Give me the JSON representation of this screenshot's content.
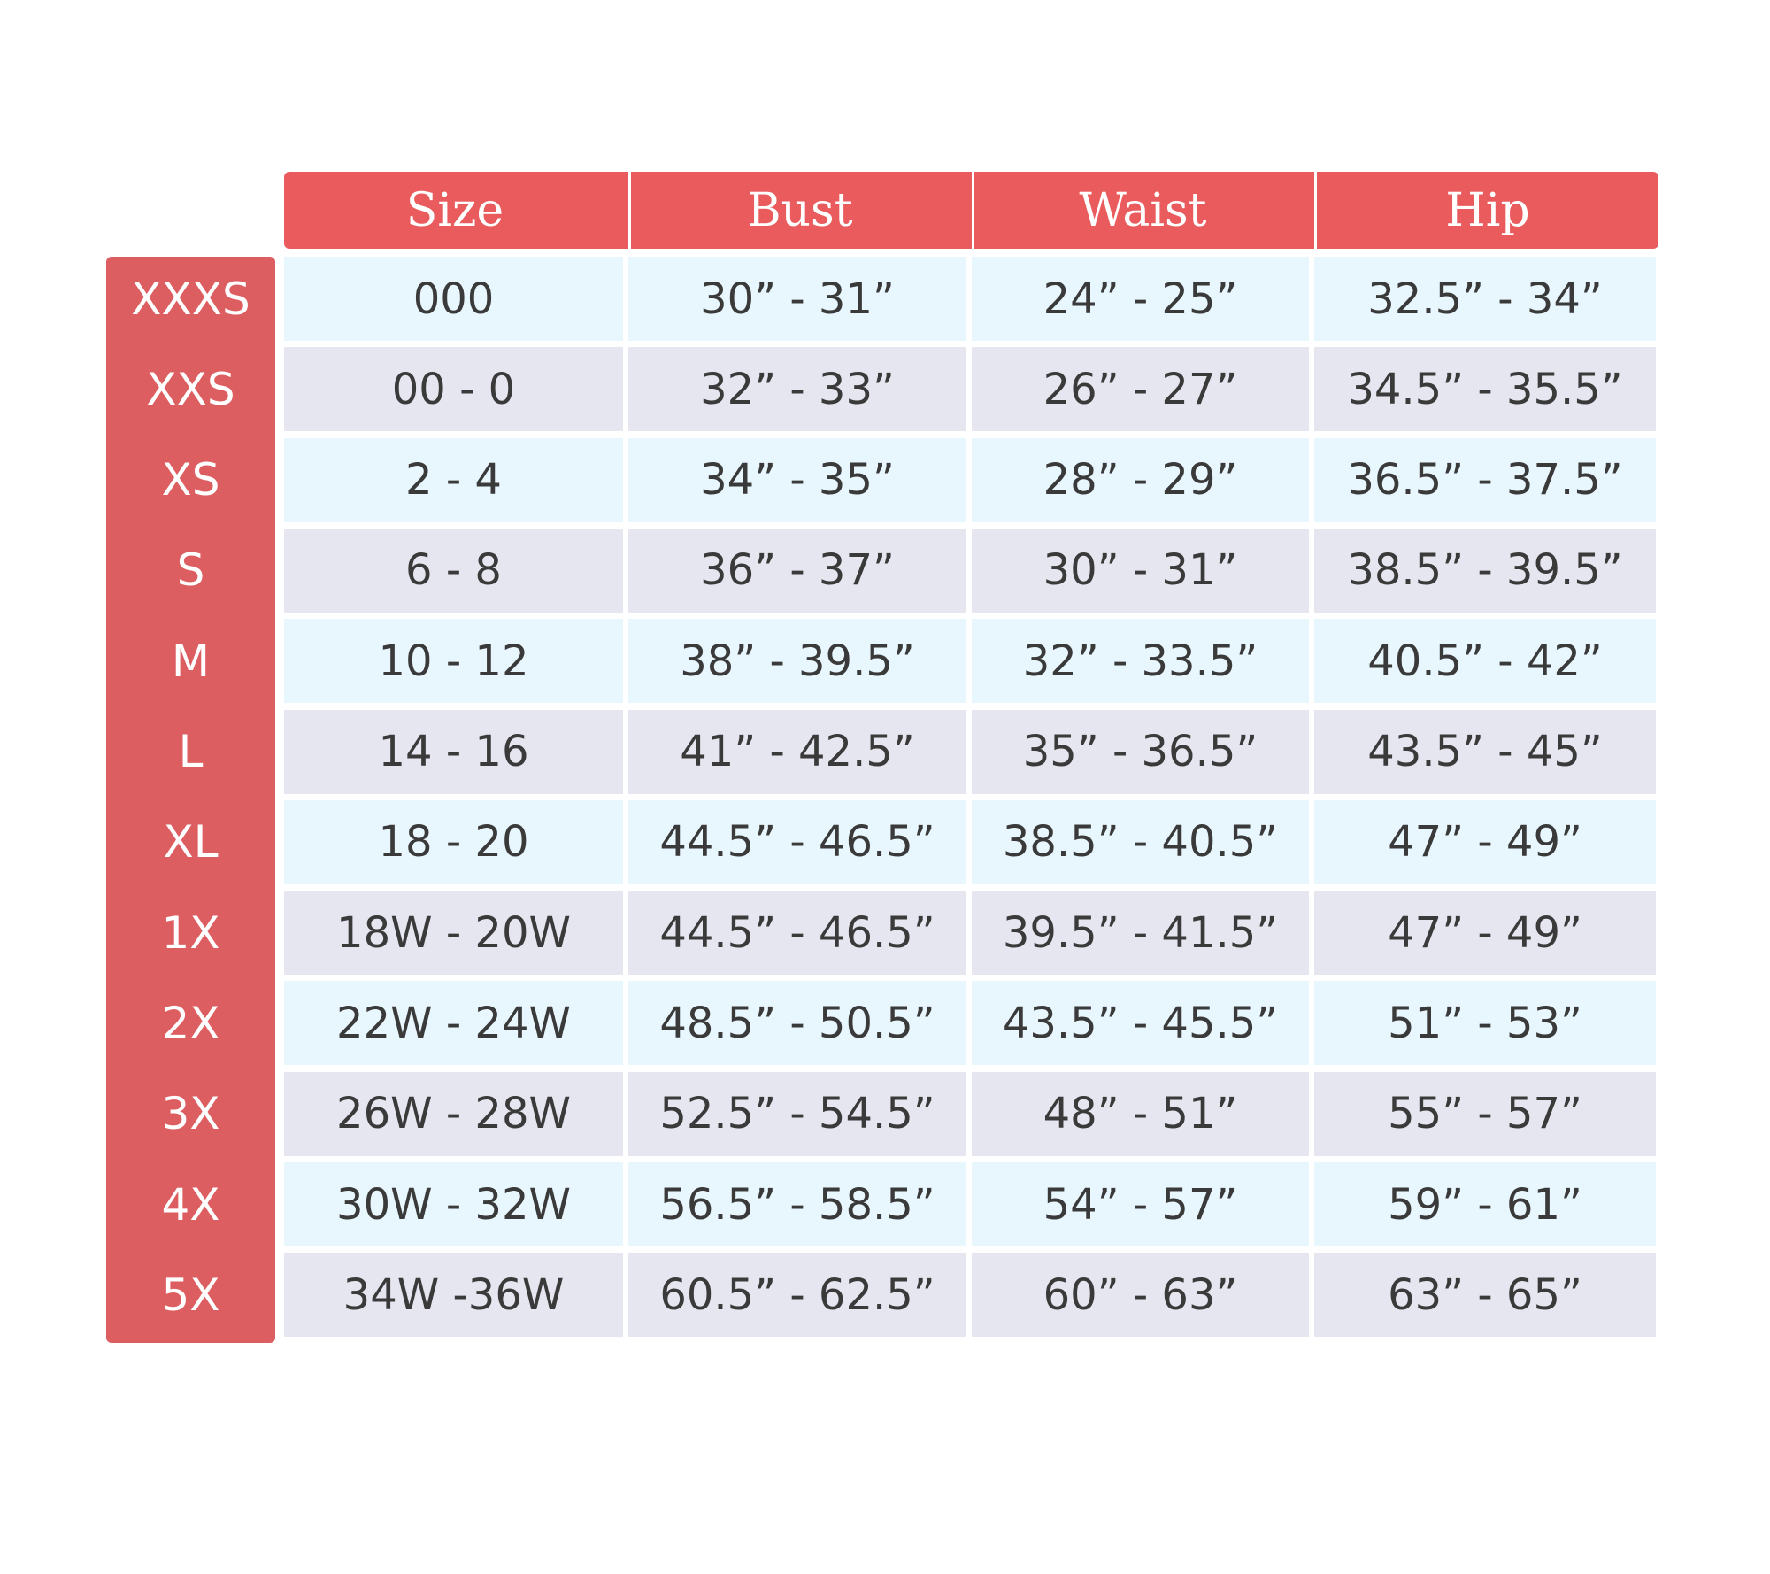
{
  "header": {
    "columns": [
      "Size",
      "Bust",
      "Waist",
      "Hip"
    ]
  },
  "table": {
    "row_labels": [
      "XXXS",
      "XXS",
      "XS",
      "S",
      "M",
      "L",
      "XL",
      "1X",
      "2X",
      "3X",
      "4X",
      "5X"
    ],
    "rows": [
      [
        "000",
        "30” - 31”",
        "24” - 25”",
        "32.5” - 34”"
      ],
      [
        "00 - 0",
        "32” - 33”",
        "26” - 27”",
        "34.5” - 35.5”"
      ],
      [
        "2 - 4",
        "34” - 35”",
        "28” - 29”",
        "36.5” - 37.5”"
      ],
      [
        "6 - 8",
        "36” - 37”",
        "30” - 31”",
        "38.5” - 39.5”"
      ],
      [
        "10 - 12",
        "38” - 39.5”",
        "32” - 33.5”",
        "40.5” - 42”"
      ],
      [
        "14 - 16",
        "41” - 42.5”",
        "35” - 36.5”",
        "43.5” - 45”"
      ],
      [
        "18 - 20",
        "44.5” - 46.5”",
        "38.5” - 40.5”",
        "47” - 49”"
      ],
      [
        "18W - 20W",
        "44.5” - 46.5”",
        "39.5” - 41.5”",
        "47” - 49”"
      ],
      [
        "22W - 24W",
        "48.5” - 50.5”",
        "43.5” - 45.5”",
        "51” - 53”"
      ],
      [
        "26W - 28W",
        "52.5” - 54.5”",
        "48” - 51”",
        "55” - 57”"
      ],
      [
        "30W - 32W",
        "56.5” - 58.5”",
        "54” - 57”",
        "59” - 61”"
      ],
      [
        "34W -36W",
        "60.5” - 62.5”",
        "60” - 63”",
        "63” - 65”"
      ]
    ]
  }
}
